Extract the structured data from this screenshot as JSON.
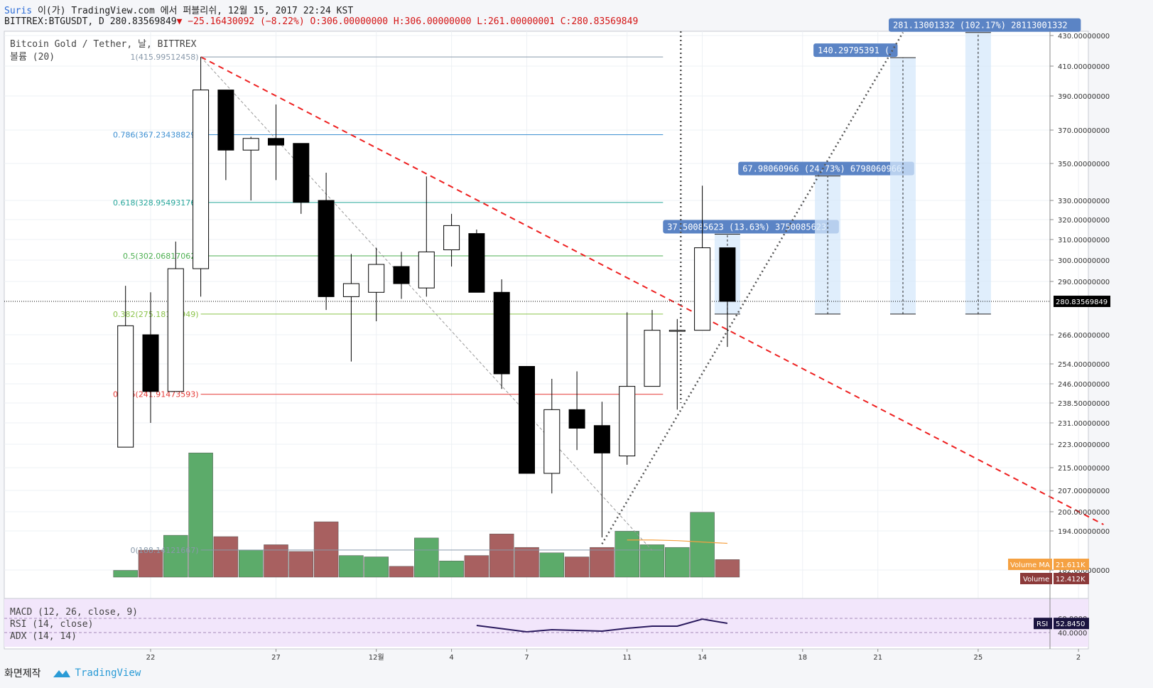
{
  "header": {
    "publisher": "Suris",
    "publish_text": "이(가) TradingView.com 에서 퍼블리쉬, 12월 15, 2017 22:24 KST",
    "symbol": "BITTREX:BTGUSDT, D",
    "last": "280.83569849",
    "change": "−25.16430092 (−8.22%)",
    "ohlc": "O:306.00000000 H:306.00000000 L:261.00000001 C:280.83569849"
  },
  "legend": {
    "title": "Bitcoin Gold / Tether, 날, BITTREX",
    "volume": "볼륨 (20)"
  },
  "indicators": [
    "MACD (12, 26, close, 9)",
    "RSI (14, close)",
    "ADX (14, 14)"
  ],
  "footer": {
    "screenshot": "화면제작",
    "brand": "TradingView"
  },
  "colors": {
    "up_body": "#ffffff",
    "down_body": "#000000",
    "wick": "#000000",
    "vol_up": "#5cab6a",
    "vol_down": "#a86060",
    "trend": "#ee2020",
    "fib_1": "#8899aa",
    "fib_786": "#3d8fd1",
    "fib_618": "#26a69a",
    "fib_5": "#4caf50",
    "fib_382": "#8bc34a",
    "fib_236": "#e53935",
    "fib_0": "#8899aa",
    "rsi_band": "#f0e4fa",
    "rsi_line": "#2a1a5e"
  },
  "chart_data": {
    "type": "candlestick",
    "title": "Bitcoin Gold / Tether, 날, BITTREX",
    "ylim": [
      180,
      432
    ],
    "y_ticks": [
      "430.00000000",
      "410.00000000",
      "390.00000000",
      "370.00000000",
      "350.00000000",
      "330.00000000",
      "320.00000000",
      "310.00000000",
      "300.00000000",
      "290.00000000",
      "266.00000000",
      "254.00000000",
      "246.00000000",
      "238.50000000",
      "231.00000000",
      "223.00000000",
      "215.00000000",
      "207.00000000",
      "200.00000000",
      "194.00000000",
      "182.00000000"
    ],
    "x_ticks": [
      {
        "label": "22",
        "day": 22
      },
      {
        "label": "27",
        "day": 27
      },
      {
        "label": "12월",
        "day": 31
      },
      {
        "label": "4",
        "day": 34
      },
      {
        "label": "7",
        "day": 37
      },
      {
        "label": "11",
        "day": 41
      },
      {
        "label": "14",
        "day": 44
      },
      {
        "label": "18",
        "day": 48
      },
      {
        "label": "21",
        "day": 51
      },
      {
        "label": "25",
        "day": 55
      },
      {
        "label": "2",
        "day": 59
      }
    ],
    "candles": [
      {
        "day": 21,
        "o": 222,
        "h": 288,
        "l": 222,
        "c": 270
      },
      {
        "day": 22,
        "o": 266,
        "h": 285,
        "l": 231,
        "c": 243
      },
      {
        "day": 23,
        "o": 243,
        "h": 309,
        "l": 243,
        "c": 296
      },
      {
        "day": 24,
        "o": 296,
        "h": 416,
        "l": 283,
        "c": 394
      },
      {
        "day": 25,
        "o": 394,
        "h": 394,
        "l": 341,
        "c": 358
      },
      {
        "day": 26,
        "o": 358,
        "h": 366,
        "l": 330,
        "c": 365
      },
      {
        "day": 27,
        "o": 365,
        "h": 385,
        "l": 341,
        "c": 361
      },
      {
        "day": 28,
        "o": 362,
        "h": 362,
        "l": 323,
        "c": 329
      },
      {
        "day": 29,
        "o": 330,
        "h": 345,
        "l": 277,
        "c": 283
      },
      {
        "day": 30,
        "o": 283,
        "h": 303,
        "l": 255,
        "c": 289
      },
      {
        "day": 31,
        "o": 285,
        "h": 306,
        "l": 272,
        "c": 298
      },
      {
        "day": 32,
        "o": 297,
        "h": 304,
        "l": 282,
        "c": 289
      },
      {
        "day": 33,
        "o": 287,
        "h": 343,
        "l": 283,
        "c": 304
      },
      {
        "day": 34,
        "o": 305,
        "h": 323,
        "l": 297,
        "c": 317
      },
      {
        "day": 35,
        "o": 313,
        "h": 315,
        "l": 285,
        "c": 285
      },
      {
        "day": 36,
        "o": 285,
        "h": 291,
        "l": 244,
        "c": 250
      },
      {
        "day": 37,
        "o": 253,
        "h": 253,
        "l": 213,
        "c": 213
      },
      {
        "day": 38,
        "o": 213,
        "h": 248,
        "l": 206,
        "c": 236
      },
      {
        "day": 39,
        "o": 236,
        "h": 251,
        "l": 221,
        "c": 229
      },
      {
        "day": 40,
        "o": 230,
        "h": 239,
        "l": 192,
        "c": 220
      },
      {
        "day": 41,
        "o": 219,
        "h": 276,
        "l": 216,
        "c": 245
      },
      {
        "day": 42,
        "o": 245,
        "h": 277,
        "l": 245,
        "c": 268
      },
      {
        "day": 43,
        "o": 268,
        "h": 273,
        "l": 236,
        "c": 268
      },
      {
        "day": 44,
        "o": 268,
        "h": 338,
        "l": 268,
        "c": 306
      },
      {
        "day": 45,
        "o": 306,
        "h": 306,
        "l": 261,
        "c": 280.83569849
      }
    ],
    "volume": [
      {
        "day": 21,
        "v": 5,
        "up": true
      },
      {
        "day": 22,
        "v": 20,
        "up": false
      },
      {
        "day": 23,
        "v": 31,
        "up": true
      },
      {
        "day": 24,
        "v": 92,
        "up": true
      },
      {
        "day": 25,
        "v": 30,
        "up": false
      },
      {
        "day": 26,
        "v": 20,
        "up": true
      },
      {
        "day": 27,
        "v": 24,
        "up": false
      },
      {
        "day": 28,
        "v": 19,
        "up": false
      },
      {
        "day": 29,
        "v": 41,
        "up": false
      },
      {
        "day": 30,
        "v": 16,
        "up": true
      },
      {
        "day": 31,
        "v": 15,
        "up": true
      },
      {
        "day": 32,
        "v": 8,
        "up": false
      },
      {
        "day": 33,
        "v": 29,
        "up": true
      },
      {
        "day": 34,
        "v": 12,
        "up": true
      },
      {
        "day": 35,
        "v": 16,
        "up": false
      },
      {
        "day": 36,
        "v": 32,
        "up": false
      },
      {
        "day": 37,
        "v": 22,
        "up": false
      },
      {
        "day": 38,
        "v": 18,
        "up": true
      },
      {
        "day": 39,
        "v": 15,
        "up": false
      },
      {
        "day": 40,
        "v": 22,
        "up": false
      },
      {
        "day": 41,
        "v": 34,
        "up": true
      },
      {
        "day": 42,
        "v": 24,
        "up": true
      },
      {
        "day": 43,
        "v": 22,
        "up": true
      },
      {
        "day": 44,
        "v": 48,
        "up": true
      },
      {
        "day": 45,
        "v": 13,
        "up": false
      }
    ],
    "volume_max": 100,
    "volume_ma": [
      {
        "day": 41,
        "v": 27.5
      },
      {
        "day": 42,
        "v": 27.5
      },
      {
        "day": 43,
        "v": 27
      },
      {
        "day": 44,
        "v": 26
      },
      {
        "day": 45,
        "v": 25
      }
    ],
    "volume_ma_label": "Volume MA",
    "volume_ma_value": "21.611K",
    "volume_label": "Volume",
    "volume_value": "12.412K",
    "last_price_label": "280.83569849",
    "fib_levels": [
      {
        "label": "1(415.99512458)",
        "price": 415.99512458,
        "color": "#8899aa"
      },
      {
        "label": "0.786(367.23438829)",
        "price": 367.23438829,
        "color": "#3d8fd1"
      },
      {
        "label": "0.618(328.95493176)",
        "price": 328.95493176,
        "color": "#26a69a"
      },
      {
        "label": "0.5(302.06817062)",
        "price": 302.06817062,
        "color": "#4caf50"
      },
      {
        "label": "0.382(275.18140949)",
        "price": 275.18140949,
        "color": "#8bc34a"
      },
      {
        "label": "0.236(241.91473593)",
        "price": 241.91473593,
        "color": "#e53935"
      },
      {
        "label": "0(188.14121667)",
        "price": 188.14121667,
        "color": "#8899aa"
      }
    ],
    "fib_start_day": 24,
    "fib_end_day": 43,
    "trendline": {
      "day1": 24,
      "p1": 416,
      "day2": 60,
      "p2": 196
    },
    "grey_dashed": {
      "day1": 24,
      "p1": 416,
      "day2": 42,
      "p2": 188
    },
    "dotted_vertical_day": 43,
    "dotted_diagonal": {
      "day1": 40,
      "p1": 190,
      "day2": 52,
      "p2": 432
    },
    "projections": [
      {
        "day": 45,
        "from": 275.2,
        "to": 312.7,
        "label": "37.50085623 (13.63%) 3750085623",
        "label_day": 43
      },
      {
        "day": 49,
        "from": 275.2,
        "to": 343.2,
        "label": "67.98060966 (24.73%) 6798060966",
        "label_day": 46
      },
      {
        "day": 52,
        "from": 275.2,
        "to": 415.5,
        "label": "140.29795391 (",
        "label_day": 49
      },
      {
        "day": 55,
        "from": 275.2,
        "to": 432,
        "label": "281.13001332 (102.17%) 28113001332",
        "label_day": 52
      }
    ],
    "rsi": {
      "label": "RSI",
      "value": "52.8450",
      "ticks": [
        "60.0000",
        "40.0000"
      ],
      "points": [
        {
          "day": 35,
          "v": 50
        },
        {
          "day": 37,
          "v": 41
        },
        {
          "day": 38,
          "v": 44
        },
        {
          "day": 40,
          "v": 42
        },
        {
          "day": 41,
          "v": 46
        },
        {
          "day": 42,
          "v": 49
        },
        {
          "day": 43,
          "v": 49
        },
        {
          "day": 44,
          "v": 59
        },
        {
          "day": 45,
          "v": 53
        }
      ]
    }
  }
}
